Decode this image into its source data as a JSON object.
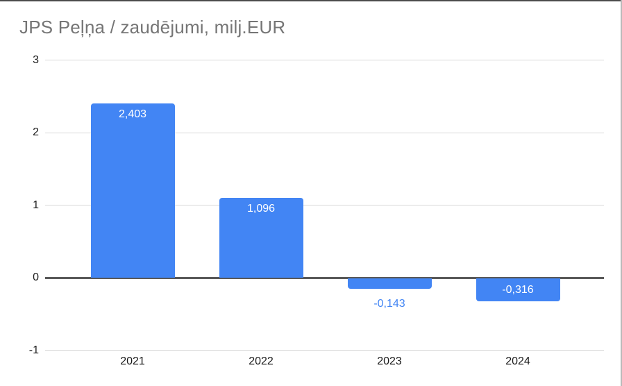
{
  "chart_data": {
    "type": "bar",
    "title": "JPS Peļņa / zaudējumi, milj.EUR",
    "categories": [
      "2021",
      "2022",
      "2023",
      "2024"
    ],
    "values": [
      2.403,
      1.096,
      -0.143,
      -0.316
    ],
    "data_labels": [
      "2,403",
      "1,096",
      "-0,143",
      "-0,316"
    ],
    "xlabel": "",
    "ylabel": "",
    "ylim": [
      -1,
      3
    ],
    "yticks": [
      3,
      2,
      1,
      0,
      -1
    ],
    "ytick_labels": [
      "3",
      "2",
      "1",
      "0",
      "-1"
    ],
    "grid": true,
    "legend": false,
    "colors": {
      "bar": "#4285f4",
      "label_inside": "#ffffff",
      "label_outside": "#4285f4",
      "title": "#757575",
      "axis_text": "#1a1a1a",
      "gridline": "#d9d9d9",
      "zero_line": "#595959"
    }
  }
}
